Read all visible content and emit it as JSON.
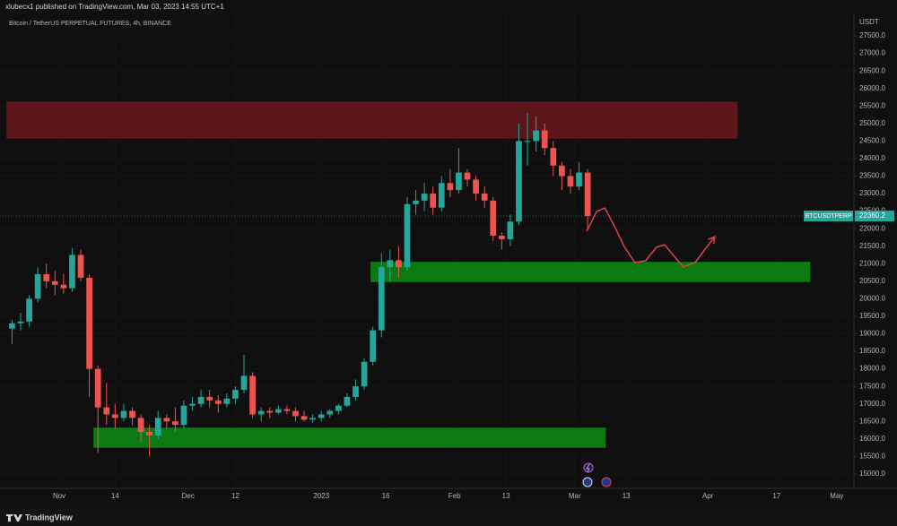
{
  "chart_data": {
    "type": "candlestick",
    "header": "xlubecx1 published on TradingView.com, Mar 03, 2023 14:55 UTC+1",
    "title": "Bitcoin / TetherUS PERPETUAL FUTURES, 4h, BINANCE",
    "currency": "USDT",
    "symbol": "BTCUSDTPERP",
    "last_price": 22360.2,
    "brand": "TradingView",
    "up_color": "#26a69a",
    "down_color": "#ef5350",
    "grid": true,
    "x": [
      -12,
      -10,
      -8,
      -6,
      -4,
      -2,
      0,
      2,
      4,
      6,
      8,
      10,
      12,
      14,
      16,
      18,
      20,
      22,
      24,
      26,
      28,
      30,
      32,
      34,
      36,
      38,
      40,
      42,
      44,
      46,
      48,
      50,
      52,
      54,
      56,
      58,
      60,
      62,
      64,
      66,
      68,
      70,
      72,
      74,
      76,
      78,
      80,
      82,
      84,
      86,
      88,
      90,
      92,
      94,
      96,
      98,
      100,
      102,
      104,
      106,
      108,
      110,
      112,
      114,
      116,
      118,
      120,
      122
    ],
    "open": [
      19150,
      19300,
      19350,
      20000,
      20700,
      20500,
      20400,
      20300,
      21250,
      20600,
      18000,
      16900,
      16700,
      16600,
      16800,
      16600,
      16200,
      16100,
      16600,
      16500,
      16400,
      16950,
      17000,
      17200,
      17100,
      17000,
      17150,
      17400,
      17800,
      16700,
      16800,
      16750,
      16850,
      16800,
      16650,
      16550,
      16600,
      16700,
      16800,
      16950,
      17200,
      17500,
      18200,
      19100,
      20900,
      21100,
      20900,
      22700,
      22800,
      23000,
      22600,
      23300,
      23100,
      23600,
      23400,
      23000,
      22800,
      21800,
      21700,
      22200,
      24500,
      24500,
      24800,
      24300,
      23800,
      23500,
      23200,
      23600
    ],
    "high": [
      19400,
      19600,
      20100,
      20900,
      21000,
      20800,
      20700,
      21450,
      21400,
      20700,
      18100,
      17600,
      17000,
      17000,
      16900,
      16700,
      16400,
      16800,
      16700,
      16900,
      17100,
      17200,
      17400,
      17400,
      17250,
      17300,
      17500,
      18400,
      17900,
      16900,
      16900,
      16950,
      16950,
      16900,
      16800,
      16700,
      16800,
      16850,
      17000,
      17300,
      17700,
      18300,
      19200,
      21300,
      21400,
      21500,
      22900,
      23100,
      23300,
      23200,
      23500,
      23700,
      24300,
      23700,
      23500,
      23200,
      22900,
      21900,
      22400,
      25000,
      25300,
      25200,
      25000,
      24500,
      23900,
      23700,
      23900,
      23700
    ],
    "low": [
      18700,
      19100,
      19200,
      19900,
      20300,
      20100,
      20150,
      20200,
      20500,
      17200,
      15600,
      16400,
      16300,
      16500,
      16400,
      15900,
      15500,
      16000,
      16300,
      16200,
      16300,
      16800,
      16900,
      16900,
      16750,
      16900,
      17000,
      17300,
      16600,
      16500,
      16600,
      16700,
      16700,
      16500,
      16500,
      16450,
      16500,
      16600,
      16700,
      16900,
      17100,
      17400,
      18100,
      18900,
      20500,
      20600,
      20800,
      22400,
      22500,
      22400,
      22500,
      22900,
      23000,
      23200,
      22800,
      22600,
      21650,
      21400,
      21500,
      22100,
      23800,
      24200,
      24100,
      23500,
      23100,
      23000,
      23100,
      22000
    ],
    "close": [
      19300,
      19350,
      20000,
      20700,
      20500,
      20400,
      20300,
      21250,
      20600,
      18000,
      16900,
      16700,
      16600,
      16800,
      16600,
      16200,
      16100,
      16600,
      16500,
      16400,
      16950,
      17000,
      17200,
      17100,
      17000,
      17150,
      17400,
      17800,
      16700,
      16800,
      16750,
      16850,
      16800,
      16650,
      16550,
      16600,
      16700,
      16800,
      16950,
      17200,
      17500,
      18200,
      19100,
      20900,
      21100,
      20900,
      22700,
      22800,
      23000,
      22600,
      23300,
      23100,
      23600,
      23400,
      23000,
      22800,
      21800,
      21700,
      22200,
      24500,
      24500,
      24800,
      24300,
      23800,
      23500,
      23200,
      23600,
      22360.2
    ],
    "zones": [
      {
        "color": "#5c1619",
        "x": [
          -12.4,
          158
        ],
        "y": [
          24560,
          25634
        ]
      },
      {
        "color": "#0b7a12",
        "x": [
          72.4,
          174.9
        ],
        "y": [
          20470,
          21060
        ]
      },
      {
        "color": "#0b7a12",
        "x": [
          7.9,
          127.3
        ],
        "y": [
          15740,
          16330
        ]
      }
    ],
    "projection": {
      "color": "#e0404a",
      "x": [
        122.8,
        125.1,
        127.0,
        129.0,
        131.5,
        134.0,
        136.5,
        139.0,
        140.9,
        142.8,
        145.3,
        148.0,
        152.6
      ],
      "y": [
        21927,
        22490,
        22592,
        22132,
        21493,
        21033,
        21084,
        21467,
        21544,
        21263,
        20905,
        21033,
        21774
      ]
    },
    "xlim": [
      -13.8,
      185
    ],
    "xticks": [
      {
        "value": 0,
        "label": "Nov"
      },
      {
        "value": 13,
        "label": "14"
      },
      {
        "value": 30,
        "label": "Dec"
      },
      {
        "value": 41,
        "label": "12"
      },
      {
        "value": 61,
        "label": "2023"
      },
      {
        "value": 76,
        "label": "16"
      },
      {
        "value": 92,
        "label": "Feb"
      },
      {
        "value": 104,
        "label": "13"
      },
      {
        "value": 120,
        "label": "Mar"
      },
      {
        "value": 132,
        "label": "13"
      },
      {
        "value": 151,
        "label": "Apr"
      },
      {
        "value": 167,
        "label": "17"
      },
      {
        "value": 181,
        "label": "May"
      }
    ],
    "ylim": [
      14590,
      28140
    ],
    "yticks": [
      {
        "value": 15000,
        "label": "15000.0"
      },
      {
        "value": 15500,
        "label": "15500.0"
      },
      {
        "value": 16000,
        "label": "16000.0"
      },
      {
        "value": 16500,
        "label": "16500.0"
      },
      {
        "value": 17000,
        "label": "17000.0"
      },
      {
        "value": 17500,
        "label": "17500.0"
      },
      {
        "value": 18000,
        "label": "18000.0"
      },
      {
        "value": 18500,
        "label": "18500.0"
      },
      {
        "value": 19000,
        "label": "19000.0"
      },
      {
        "value": 19500,
        "label": "19500.0"
      },
      {
        "value": 20000,
        "label": "20000.0"
      },
      {
        "value": 20500,
        "label": "20500.0"
      },
      {
        "value": 21000,
        "label": "21000.0"
      },
      {
        "value": 21500,
        "label": "21500.0"
      },
      {
        "value": 22000,
        "label": "22000.0"
      },
      {
        "value": 22500,
        "label": "22500.0"
      },
      {
        "value": 23000,
        "label": "23000.0"
      },
      {
        "value": 23500,
        "label": "23500.0"
      },
      {
        "value": 24000,
        "label": "24000.0"
      },
      {
        "value": 24500,
        "label": "24500.0"
      },
      {
        "value": 25000,
        "label": "25000.0"
      },
      {
        "value": 25500,
        "label": "25500.0"
      },
      {
        "value": 26000,
        "label": "26000.0"
      },
      {
        "value": 26500,
        "label": "26500.0"
      },
      {
        "value": 27000,
        "label": "27000.0"
      },
      {
        "value": 27500,
        "label": "27500.0"
      }
    ]
  }
}
